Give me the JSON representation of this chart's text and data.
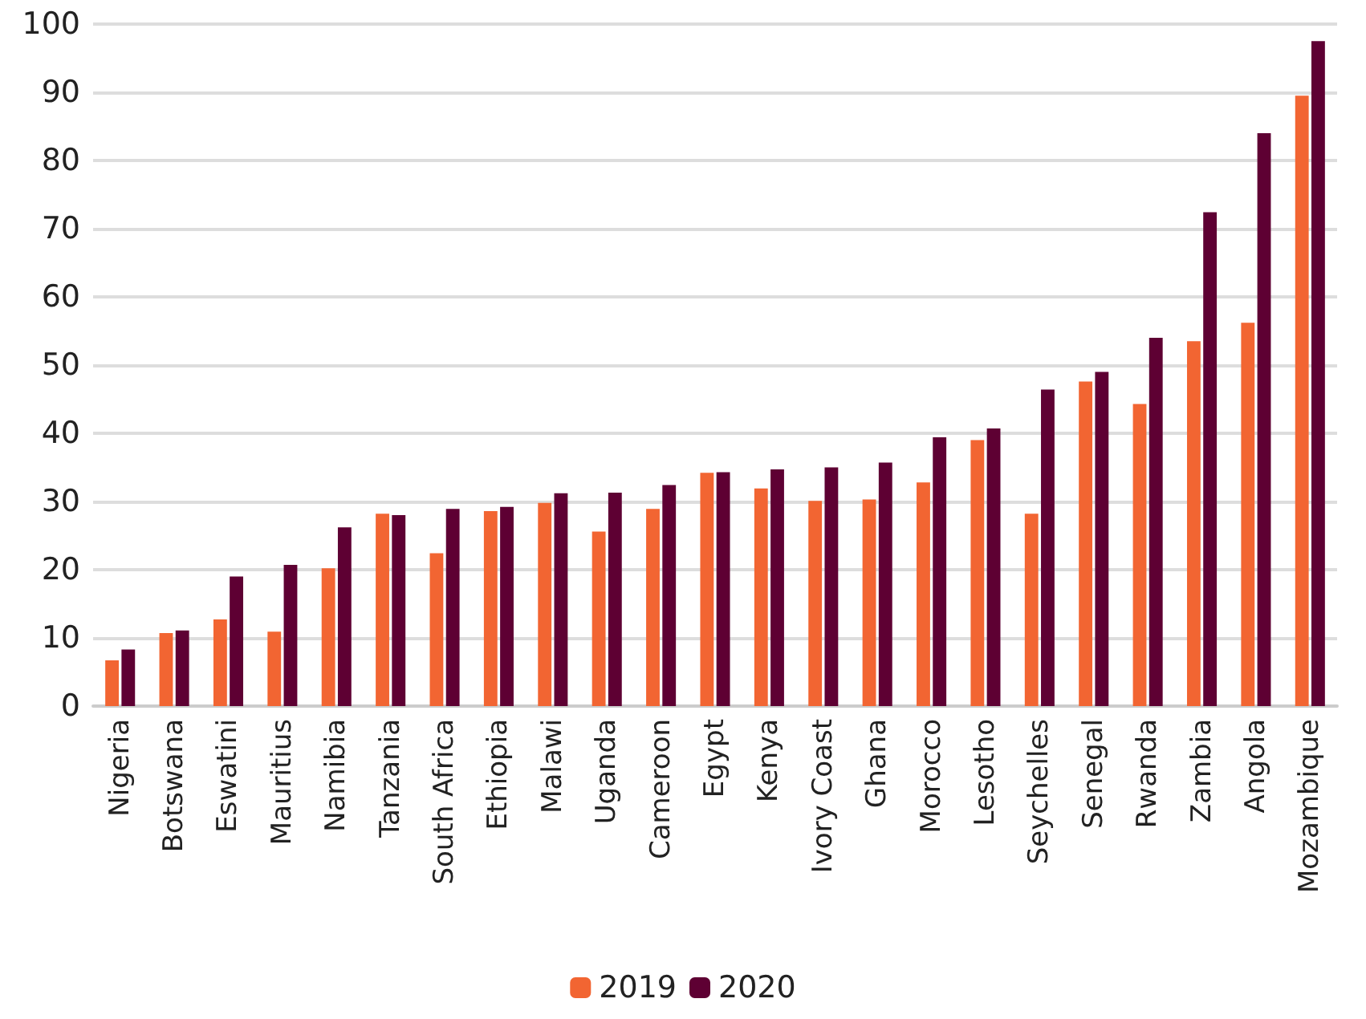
{
  "chart_data": {
    "type": "bar",
    "categories": [
      "Nigeria",
      "Botswana",
      "Eswatini",
      "Mauritius",
      "Namibia",
      "Tanzania",
      "South Africa",
      "Ethiopia",
      "Malawi",
      "Uganda",
      "Cameroon",
      "Egypt",
      "Kenya",
      "Ivory Coast",
      "Ghana",
      "Morocco",
      "Lesotho",
      "Seychelles",
      "Senegal",
      "Rwanda",
      "Zambia",
      "Angola",
      "Mozambique"
    ],
    "series": [
      {
        "name": "2019",
        "color": "#f26532",
        "values": [
          6.7,
          10.7,
          12.7,
          10.9,
          20.2,
          28.2,
          22.4,
          28.6,
          29.8,
          25.6,
          28.9,
          34.2,
          31.9,
          30.1,
          30.3,
          32.8,
          39.0,
          28.2,
          47.6,
          44.3,
          53.5,
          56.2,
          89.5
        ]
      },
      {
        "name": "2020",
        "color": "#5e0033",
        "values": [
          8.3,
          11.1,
          19.0,
          20.7,
          26.2,
          28.0,
          28.9,
          29.2,
          31.2,
          31.3,
          32.4,
          34.3,
          34.7,
          35.0,
          35.7,
          39.4,
          40.7,
          46.4,
          49.0,
          54.0,
          72.4,
          84.0,
          97.5
        ]
      }
    ],
    "ylim": [
      0,
      100
    ],
    "yticks": [
      0,
      10,
      20,
      30,
      40,
      50,
      60,
      70,
      80,
      90,
      100
    ],
    "grid": true,
    "legend": "bottom"
  }
}
